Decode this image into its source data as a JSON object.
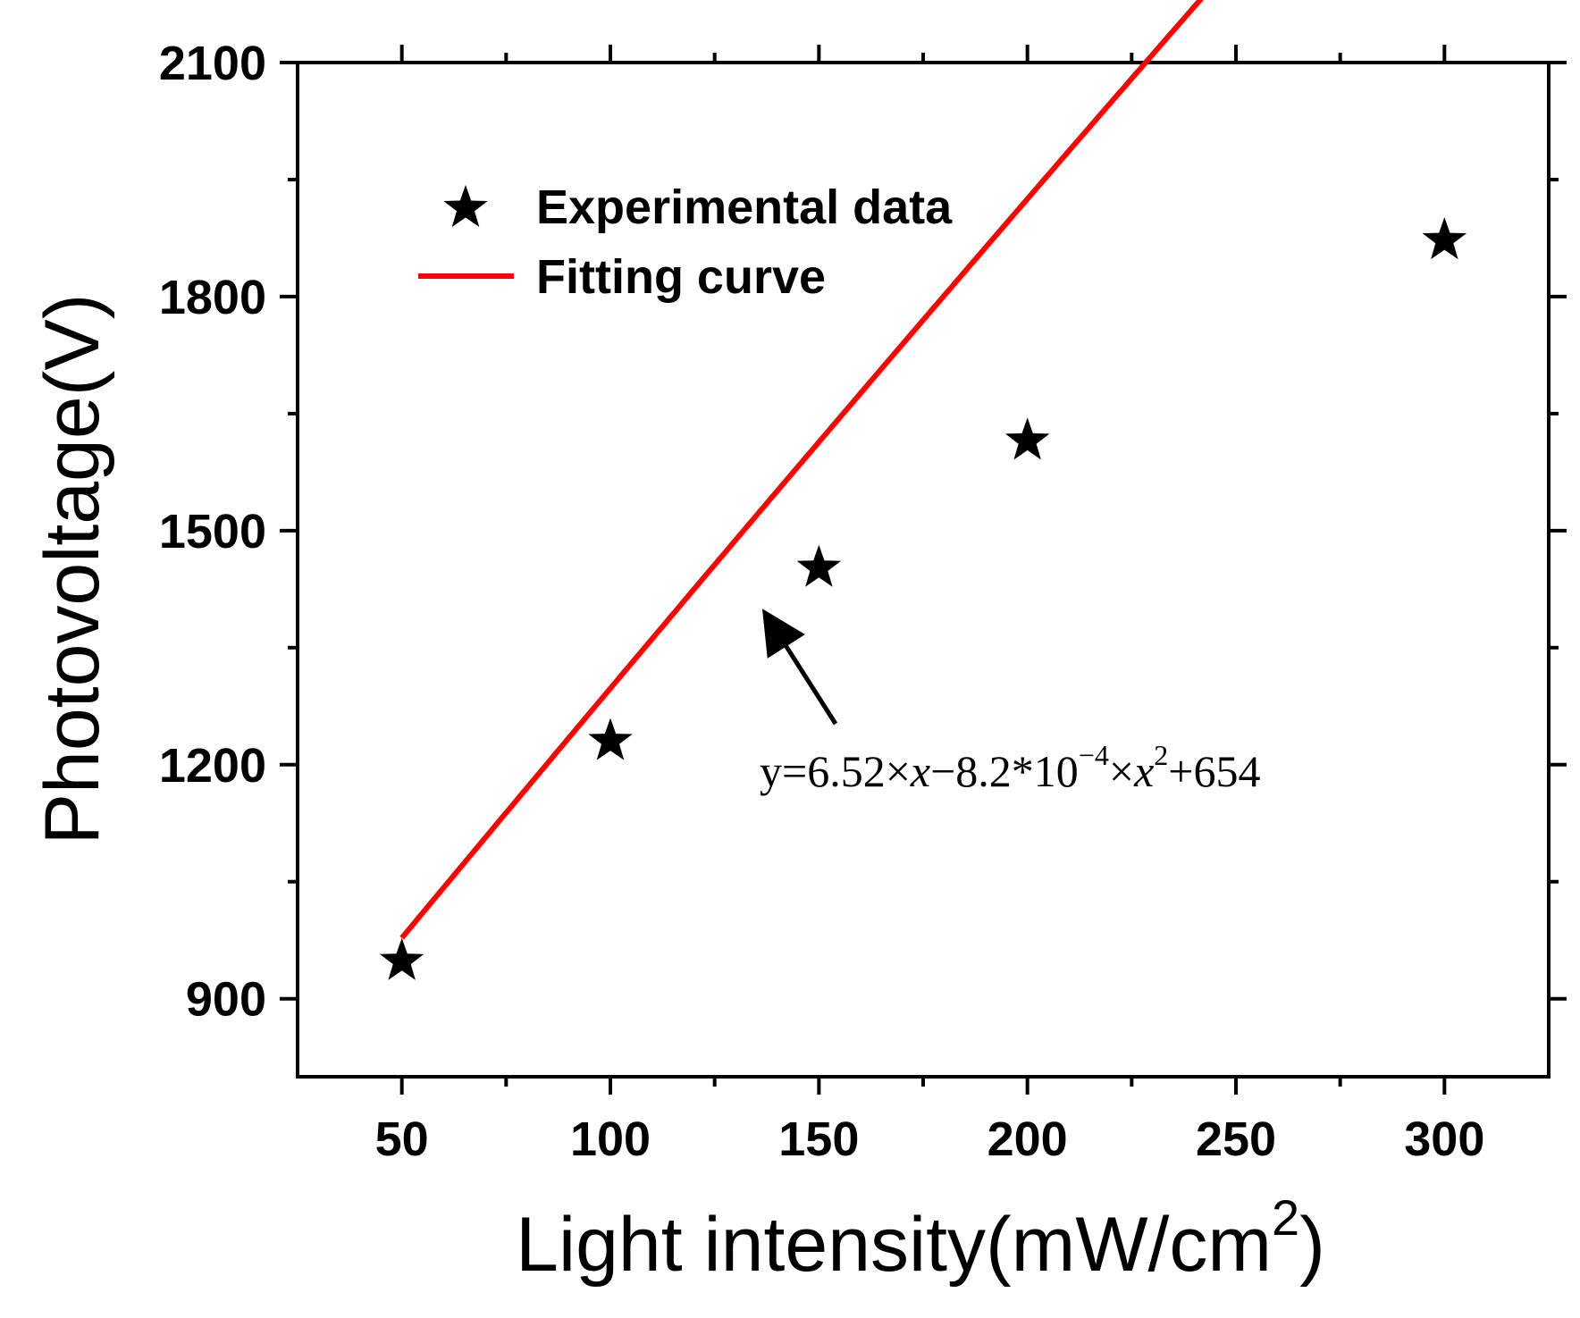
{
  "chart_data": {
    "type": "scatter",
    "title": "",
    "xlabel": "Light intensity(mW/cm",
    "xlabel_sup": "2",
    "xlabel_close": ")",
    "ylabel": "Photovoltage(V)",
    "xlim": [
      25,
      325
    ],
    "ylim": [
      800,
      2100
    ],
    "xticks": [
      50,
      100,
      150,
      200,
      250,
      300
    ],
    "yticks": [
      900,
      1200,
      1500,
      1800,
      2100
    ],
    "legend_position": "top-left",
    "colors": {
      "curve": "#ff0000",
      "marker": "#000000",
      "axis": "#000000"
    },
    "series": [
      {
        "name": "Experimental data",
        "marker": "star",
        "x": [
          50,
          100,
          150,
          200,
          300
        ],
        "y": [
          948,
          1230,
          1452,
          1615,
          1872
        ]
      },
      {
        "name": "Fitting curve",
        "kind": "line",
        "model": {
          "a": 6.52,
          "b": -0.00082,
          "c": 654
        },
        "x_range": [
          50,
          300
        ]
      }
    ],
    "annotation": {
      "y_part": "y=6.52×",
      "x1": "x",
      "mid": "−8.2*10",
      "exp": "−4",
      "times": "×",
      "x2": "x",
      "sq": "2",
      "tail": "+654",
      "arrow_target_x": 137,
      "arrow_target_y": 1395
    }
  }
}
